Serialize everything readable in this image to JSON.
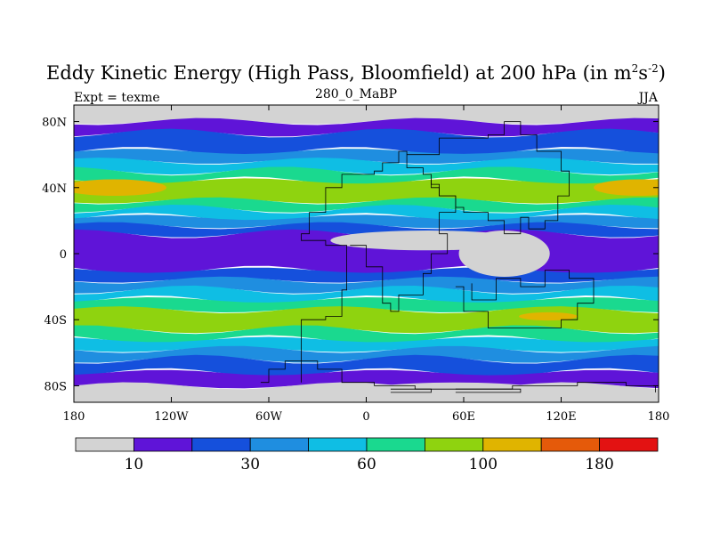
{
  "chart_data": {
    "type": "heatmap",
    "title": "Eddy Kinetic Energy (High Pass, Bloomfield) at 200 hPa (in m2s-2)",
    "title_parts": {
      "main": "Eddy Kinetic Energy (High Pass, Bloomfield) at 200 hPa (in m",
      "sup1": "2",
      "mid": "s",
      "sup2": "-2",
      "end": ")"
    },
    "experiment_label": "Expt = texme",
    "subtitle": "280_0_MaBP",
    "season": "JJA",
    "xlim": [
      -180,
      180
    ],
    "ylim": [
      -90,
      90
    ],
    "x_ticks": [
      {
        "value": -180,
        "label": "180"
      },
      {
        "value": -120,
        "label": "120W"
      },
      {
        "value": -60,
        "label": "60W"
      },
      {
        "value": 0,
        "label": "0"
      },
      {
        "value": 60,
        "label": "60E"
      },
      {
        "value": 120,
        "label": "120E"
      },
      {
        "value": 180,
        "label": "180"
      }
    ],
    "y_ticks": [
      {
        "value": 80,
        "label": "80N"
      },
      {
        "value": 40,
        "label": "40N"
      },
      {
        "value": 0,
        "label": "0"
      },
      {
        "value": -40,
        "label": "40S"
      },
      {
        "value": -80,
        "label": "80S"
      }
    ],
    "colorbar": {
      "colors": [
        "#d3d3d3",
        "#5f14d8",
        "#1550dc",
        "#1f8ee0",
        "#0fbee4",
        "#1ad98f",
        "#8fd30f",
        "#e0b400",
        "#e55a0a",
        "#e31212"
      ],
      "labels": [
        {
          "after_box": 1,
          "label": "10"
        },
        {
          "after_box": 3,
          "label": "30"
        },
        {
          "after_box": 5,
          "label": "60"
        },
        {
          "after_box": 7,
          "label": "100"
        },
        {
          "after_box": 9,
          "label": "180"
        }
      ]
    },
    "bands": [
      {
        "lat": [
          80,
          90
        ],
        "level": 0
      },
      {
        "lat": [
          73,
          80
        ],
        "level": 1
      },
      {
        "lat": [
          62,
          73
        ],
        "level": 2
      },
      {
        "lat": [
          56,
          62
        ],
        "level": 3
      },
      {
        "lat": [
          50,
          56
        ],
        "level": 4
      },
      {
        "lat": [
          44,
          50
        ],
        "level": 5
      },
      {
        "lat": [
          32,
          44
        ],
        "level": 6
      },
      {
        "lat": [
          27,
          32
        ],
        "level": 5
      },
      {
        "lat": [
          22,
          27
        ],
        "level": 4
      },
      {
        "lat": [
          17,
          22
        ],
        "level": 3
      },
      {
        "lat": [
          12,
          17
        ],
        "level": 2
      },
      {
        "lat": [
          -10,
          12
        ],
        "level": 1
      },
      {
        "lat": [
          -16,
          -10
        ],
        "level": 2
      },
      {
        "lat": [
          -22,
          -16
        ],
        "level": 3
      },
      {
        "lat": [
          -28,
          -22
        ],
        "level": 4
      },
      {
        "lat": [
          -34,
          -28
        ],
        "level": 5
      },
      {
        "lat": [
          -46,
          -34
        ],
        "level": 6
      },
      {
        "lat": [
          -52,
          -46
        ],
        "level": 5
      },
      {
        "lat": [
          -58,
          -52
        ],
        "level": 4
      },
      {
        "lat": [
          -64,
          -58
        ],
        "level": 3
      },
      {
        "lat": [
          -72,
          -64
        ],
        "level": 2
      },
      {
        "lat": [
          -80,
          -72
        ],
        "level": 1
      },
      {
        "lat": [
          -90,
          -80
        ],
        "level": 0
      }
    ],
    "features": [
      {
        "name": "jet-core-north-west",
        "level": 7,
        "center": [
          -155,
          40
        ],
        "radius": [
          32,
          5
        ]
      },
      {
        "name": "jet-core-north-east",
        "level": 7,
        "center": [
          168,
          40
        ],
        "radius": [
          28,
          5
        ]
      },
      {
        "name": "jet-core-south-east",
        "level": 7,
        "center": [
          112,
          -38
        ],
        "radius": [
          18,
          2.5
        ]
      },
      {
        "name": "tropical-low-africa",
        "level": 0,
        "center": [
          38,
          8
        ],
        "radius": [
          60,
          6
        ]
      },
      {
        "name": "tropical-low-asia",
        "level": 0,
        "center": [
          85,
          0
        ],
        "radius": [
          28,
          14
        ]
      },
      {
        "name": "southern-low-antarctica",
        "level": 0,
        "center": [
          55,
          -86
        ],
        "radius": [
          70,
          8
        ]
      }
    ]
  }
}
